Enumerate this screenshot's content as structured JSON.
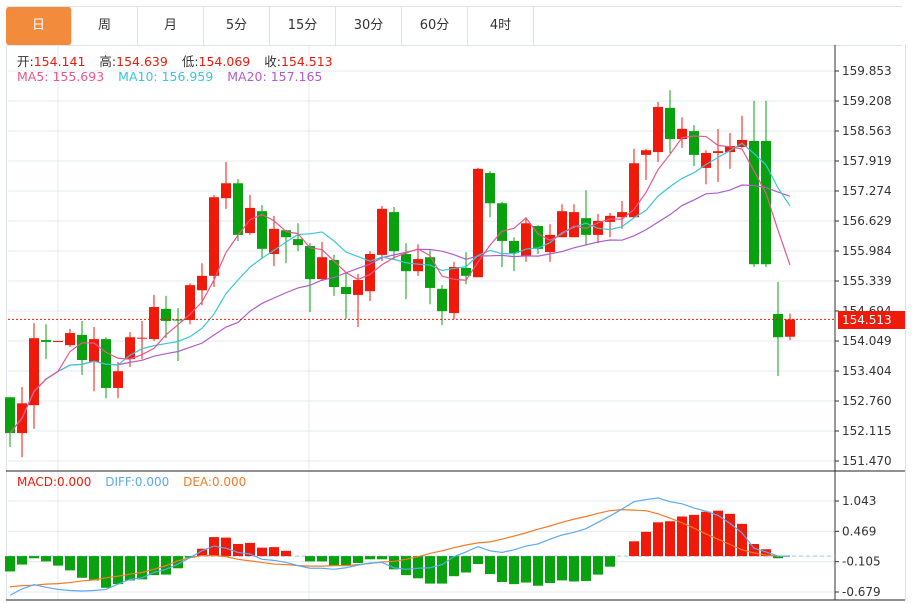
{
  "tabs": [
    {
      "label": "日",
      "active": true
    },
    {
      "label": "周"
    },
    {
      "label": "月"
    },
    {
      "label": "5分"
    },
    {
      "label": "15分"
    },
    {
      "label": "30分"
    },
    {
      "label": "60分"
    },
    {
      "label": "4时"
    }
  ],
  "ohlc": {
    "open_label": "开:",
    "open": "154.141",
    "high_label": "高:",
    "high": "154.639",
    "low_label": "低:",
    "low": "154.069",
    "close_label": "收:",
    "close": "154.513"
  },
  "ma": {
    "ma5": "MA5: 155.693",
    "ma10": "MA10: 156.959",
    "ma20": "MA20: 157.165"
  },
  "macd_header": {
    "macd": "MACD:0.000",
    "diff": "DIFF:0.000",
    "dea": "DEA:0.000"
  },
  "current_price": "154.513",
  "colors": {
    "up": "#f01a0a",
    "down": "#08a20e",
    "ma5": "#e8578c",
    "ma10": "#39c7d9",
    "ma20": "#b05ccc",
    "diff": "#5aaaf0",
    "dea": "#f47a28",
    "accent": "#f28c3c"
  },
  "chart_data": {
    "type": "candlestick",
    "price_axis": {
      "ticks": [
        "159.853",
        "159.208",
        "158.563",
        "157.919",
        "157.274",
        "156.629",
        "155.984",
        "155.339",
        "154.694",
        "154.049",
        "153.404",
        "152.760",
        "152.115",
        "151.470"
      ],
      "range": [
        151.47,
        159.853
      ]
    },
    "macd_axis": {
      "ticks": [
        "1.043",
        "0.469",
        "-0.105",
        "-0.679"
      ],
      "range": [
        -0.679,
        1.043
      ]
    },
    "candles": [
      [
        152.84,
        152.84,
        151.77,
        152.07
      ],
      [
        152.07,
        153.06,
        151.55,
        152.71
      ],
      [
        152.67,
        154.43,
        152.16,
        154.11
      ],
      [
        154.07,
        154.41,
        153.66,
        154.03
      ],
      [
        154.04,
        154.05,
        154.03,
        154.05
      ],
      [
        153.96,
        154.31,
        153.92,
        154.22
      ],
      [
        154.18,
        154.48,
        153.32,
        153.64
      ],
      [
        153.6,
        154.35,
        152.97,
        154.09
      ],
      [
        154.09,
        154.13,
        152.82,
        153.04
      ],
      [
        153.04,
        153.6,
        152.82,
        153.4
      ],
      [
        153.66,
        154.24,
        153.49,
        154.13
      ],
      [
        154.11,
        154.48,
        153.66,
        154.12
      ],
      [
        154.09,
        155.04,
        154.05,
        154.78
      ],
      [
        154.74,
        155.02,
        154.11,
        154.48
      ],
      [
        154.51,
        154.76,
        153.62,
        154.49
      ],
      [
        154.5,
        155.29,
        154.41,
        155.25
      ],
      [
        155.14,
        155.72,
        154.82,
        155.45
      ],
      [
        155.45,
        157.19,
        155.21,
        157.14
      ],
      [
        157.12,
        157.9,
        156.89,
        157.44
      ],
      [
        157.44,
        157.53,
        156.2,
        156.33
      ],
      [
        156.37,
        157.19,
        156.33,
        156.91
      ],
      [
        156.84,
        156.97,
        155.81,
        156.03
      ],
      [
        155.92,
        156.74,
        155.66,
        156.46
      ],
      [
        156.43,
        156.43,
        155.72,
        156.28
      ],
      [
        156.24,
        156.58,
        155.98,
        156.11
      ],
      [
        156.09,
        156.15,
        154.67,
        155.38
      ],
      [
        155.38,
        156.18,
        155.34,
        155.85
      ],
      [
        155.79,
        155.9,
        155.02,
        155.21
      ],
      [
        155.21,
        155.51,
        154.52,
        155.06
      ],
      [
        155.04,
        155.49,
        154.35,
        155.36
      ],
      [
        155.12,
        155.98,
        154.91,
        155.92
      ],
      [
        155.9,
        156.95,
        155.77,
        156.89
      ],
      [
        156.82,
        156.93,
        155.79,
        155.98
      ],
      [
        155.92,
        156.15,
        154.95,
        155.55
      ],
      [
        155.55,
        156.13,
        155.45,
        155.81
      ],
      [
        155.85,
        156.0,
        154.84,
        155.19
      ],
      [
        155.17,
        155.25,
        154.39,
        154.69
      ],
      [
        154.65,
        155.75,
        154.52,
        155.64
      ],
      [
        155.62,
        155.96,
        155.27,
        155.45
      ],
      [
        155.42,
        157.77,
        155.42,
        157.75
      ],
      [
        157.66,
        157.7,
        156.71,
        157.01
      ],
      [
        157.01,
        157.04,
        155.64,
        156.2
      ],
      [
        156.2,
        156.28,
        155.55,
        155.94
      ],
      [
        155.88,
        156.71,
        155.75,
        156.58
      ],
      [
        156.52,
        156.54,
        155.92,
        156.03
      ],
      [
        155.96,
        156.56,
        155.75,
        156.33
      ],
      [
        156.28,
        156.99,
        156.28,
        156.84
      ],
      [
        156.28,
        156.99,
        156.28,
        156.82
      ],
      [
        156.69,
        157.29,
        156.11,
        156.33
      ],
      [
        156.33,
        156.78,
        156.15,
        156.63
      ],
      [
        156.61,
        156.8,
        156.28,
        156.74
      ],
      [
        156.71,
        157.06,
        156.46,
        156.82
      ],
      [
        156.71,
        158.18,
        156.71,
        157.87
      ],
      [
        158.05,
        158.18,
        157.51,
        158.15
      ],
      [
        158.11,
        159.19,
        157.9,
        159.08
      ],
      [
        159.06,
        159.44,
        158.09,
        158.39
      ],
      [
        158.39,
        158.86,
        158.2,
        158.61
      ],
      [
        158.56,
        158.69,
        157.81,
        158.05
      ],
      [
        157.77,
        158.15,
        157.42,
        158.09
      ],
      [
        158.09,
        158.61,
        157.47,
        158.13
      ],
      [
        158.11,
        158.52,
        157.75,
        158.24
      ],
      [
        158.22,
        158.89,
        158.2,
        158.37
      ],
      [
        158.35,
        159.21,
        155.64,
        155.7
      ],
      [
        158.35,
        159.21,
        155.64,
        155.7
      ],
      [
        154.63,
        155.32,
        153.3,
        154.13
      ],
      [
        154.141,
        154.639,
        154.069,
        154.513
      ]
    ],
    "macd_hist": [
      -0.29,
      -0.16,
      -0.04,
      -0.1,
      -0.18,
      -0.27,
      -0.41,
      -0.46,
      -0.6,
      -0.53,
      -0.46,
      -0.44,
      -0.36,
      -0.35,
      -0.23,
      -0.03,
      0.14,
      0.36,
      0.35,
      0.23,
      0.25,
      0.16,
      0.17,
      0.1,
      0.0,
      -0.1,
      -0.1,
      -0.18,
      -0.18,
      -0.13,
      -0.06,
      -0.06,
      -0.25,
      -0.36,
      -0.42,
      -0.52,
      -0.52,
      -0.38,
      -0.31,
      -0.15,
      -0.34,
      -0.49,
      -0.53,
      -0.5,
      -0.56,
      -0.51,
      -0.46,
      -0.48,
      -0.47,
      -0.35,
      -0.2,
      0.0,
      0.28,
      0.46,
      0.64,
      0.66,
      0.75,
      0.78,
      0.84,
      0.86,
      0.8,
      0.61,
      0.23,
      0.13,
      -0.04,
      0.0
    ],
    "diff": [
      -0.74,
      -0.62,
      -0.54,
      -0.59,
      -0.63,
      -0.65,
      -0.66,
      -0.65,
      -0.63,
      -0.53,
      -0.44,
      -0.41,
      -0.31,
      -0.25,
      -0.15,
      -0.03,
      0.1,
      0.19,
      0.15,
      0.07,
      0.04,
      -0.06,
      -0.08,
      -0.12,
      -0.18,
      -0.23,
      -0.23,
      -0.25,
      -0.22,
      -0.17,
      -0.13,
      -0.12,
      -0.22,
      -0.25,
      -0.23,
      -0.22,
      -0.16,
      -0.01,
      0.08,
      0.18,
      0.1,
      0.07,
      0.12,
      0.19,
      0.23,
      0.32,
      0.4,
      0.45,
      0.52,
      0.64,
      0.76,
      0.89,
      1.03,
      1.07,
      1.1,
      1.03,
      0.99,
      0.91,
      0.85,
      0.77,
      0.62,
      0.44,
      0.15,
      0.08,
      0.0,
      0.0
    ],
    "dea": [
      -0.58,
      -0.56,
      -0.55,
      -0.53,
      -0.52,
      -0.5,
      -0.47,
      -0.45,
      -0.41,
      -0.38,
      -0.34,
      -0.31,
      -0.25,
      -0.18,
      -0.09,
      -0.03,
      0.01,
      0.01,
      -0.01,
      -0.06,
      -0.09,
      -0.12,
      -0.15,
      -0.16,
      -0.18,
      -0.19,
      -0.19,
      -0.18,
      -0.18,
      -0.16,
      -0.14,
      -0.11,
      -0.1,
      -0.06,
      -0.01,
      0.05,
      0.1,
      0.16,
      0.21,
      0.25,
      0.27,
      0.32,
      0.38,
      0.44,
      0.51,
      0.57,
      0.64,
      0.7,
      0.75,
      0.81,
      0.86,
      0.88,
      0.87,
      0.86,
      0.8,
      0.72,
      0.63,
      0.53,
      0.42,
      0.32,
      0.22,
      0.12,
      0.06,
      0.02,
      0.0,
      0.0
    ]
  }
}
